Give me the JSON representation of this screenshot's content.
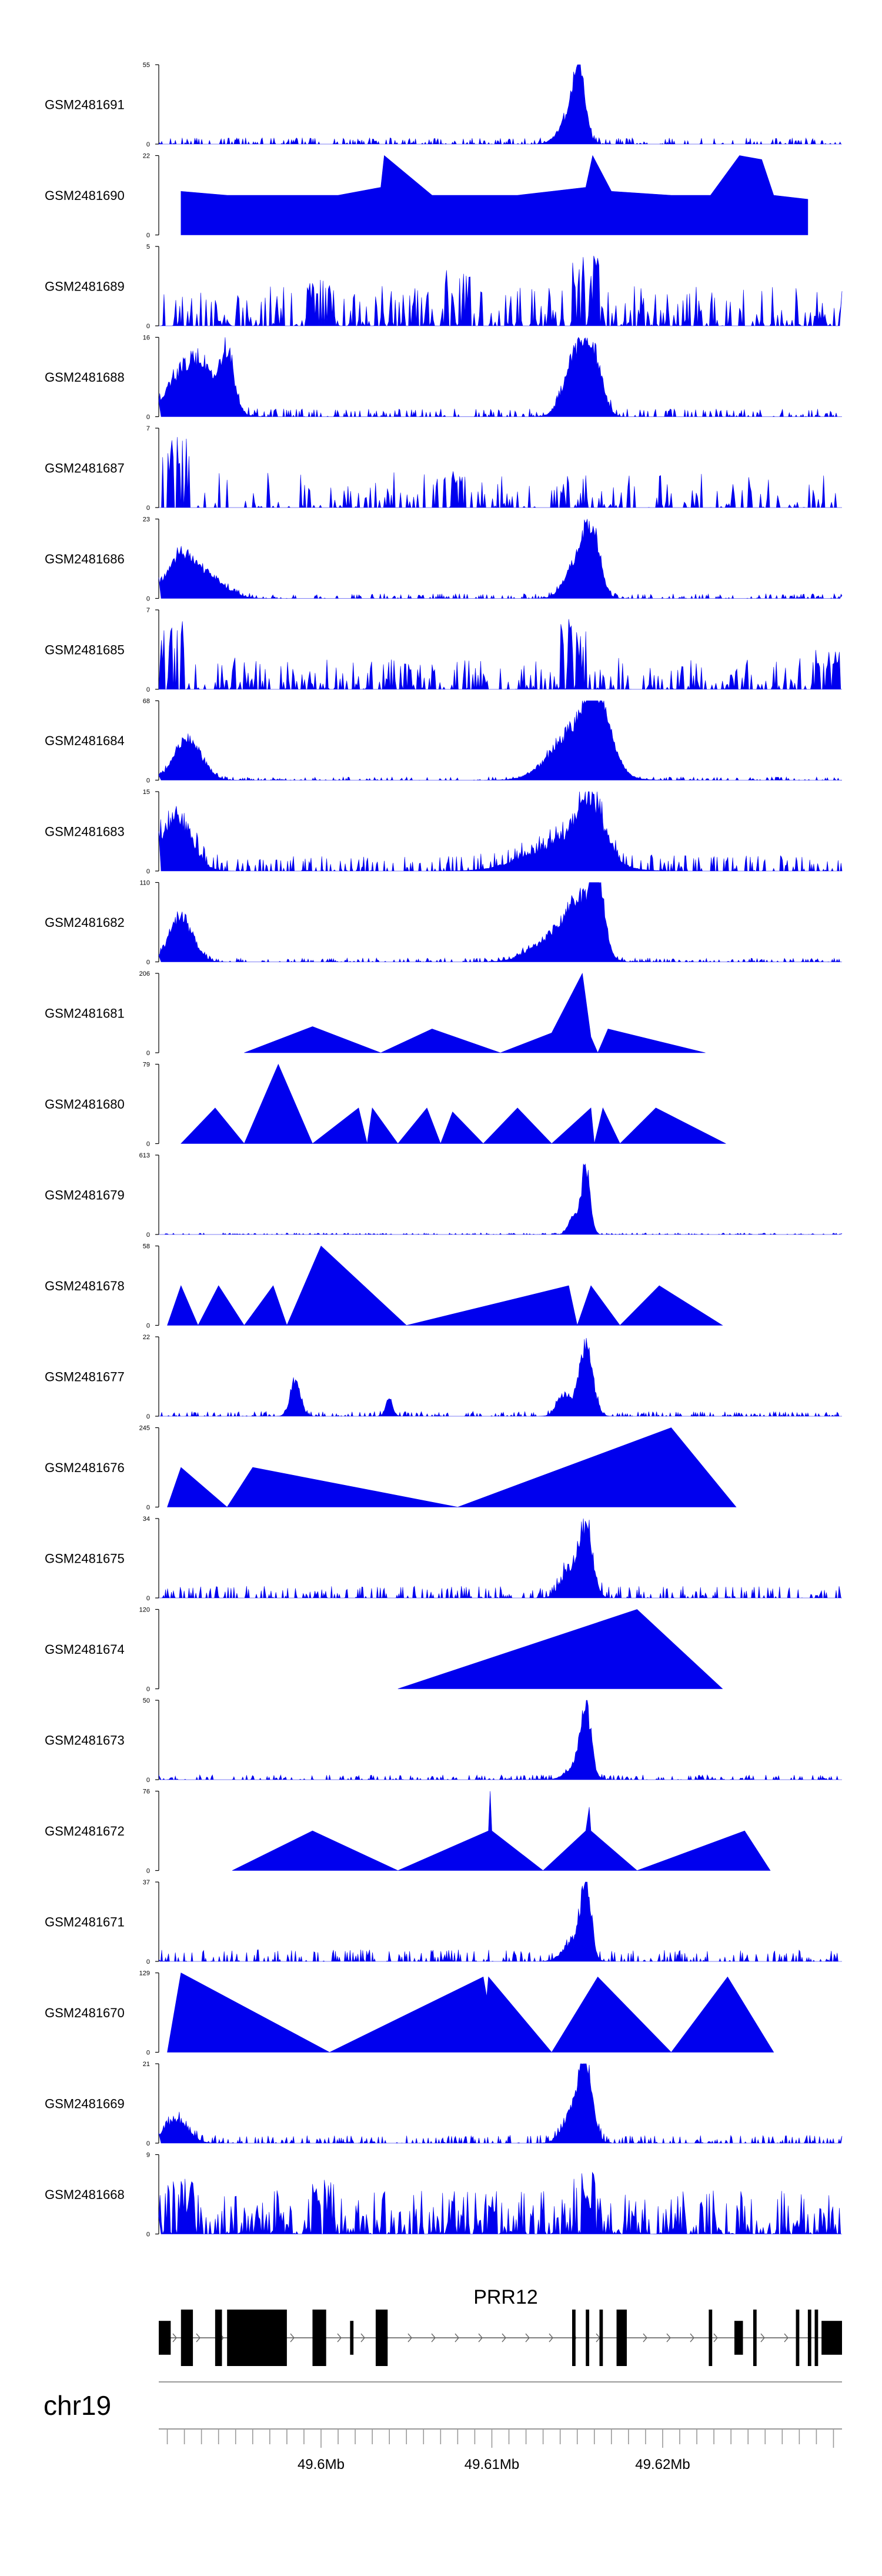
{
  "chart_data": {
    "type": "area",
    "chromosome": "chr19",
    "gene": "PRR12",
    "fill_color": "#0000ee",
    "x_range_mb": [
      49.5905,
      49.6305
    ],
    "axis_ticks": [
      {
        "pos": 49.6,
        "label": "49.6Mb"
      },
      {
        "pos": 49.61,
        "label": "49.61Mb"
      },
      {
        "pos": 49.62,
        "label": "49.62Mb"
      }
    ],
    "tracks": [
      {
        "name": "GSM2481691",
        "ymax": "55",
        "ymin": "0",
        "style": "noisy",
        "peaks": [
          [
            49.6151,
            1.0,
            0.00035
          ],
          [
            49.6145,
            0.35,
            0.0006
          ]
        ],
        "noise": 0.08
      },
      {
        "name": "GSM2481690",
        "ymax": "22",
        "ymin": "0",
        "style": "tri",
        "peaks": [
          [
            49.5918,
            0.55
          ],
          [
            49.5945,
            0.5
          ],
          [
            49.5975,
            0.5
          ],
          [
            49.601,
            0.5
          ],
          [
            49.6035,
            0.6
          ],
          [
            49.6037,
            1.0
          ],
          [
            49.6065,
            0.5
          ],
          [
            49.609,
            0.5
          ],
          [
            49.6115,
            0.5
          ],
          [
            49.6135,
            0.55
          ],
          [
            49.6155,
            0.6
          ],
          [
            49.6159,
            1.0
          ],
          [
            49.617,
            0.55
          ],
          [
            49.6205,
            0.5
          ],
          [
            49.6228,
            0.5
          ],
          [
            49.6245,
            1.0
          ],
          [
            49.6258,
            0.95
          ],
          [
            49.6265,
            0.5
          ],
          [
            49.6285,
            0.45
          ]
        ]
      },
      {
        "name": "GSM2481689",
        "ymax": "5",
        "ymin": "0",
        "style": "spiky",
        "density": 0.55,
        "height": 0.5,
        "boost": [
          [
            49.6,
            0.6
          ],
          [
            49.6155,
            0.9
          ],
          [
            49.608,
            0.7
          ]
        ]
      },
      {
        "name": "GSM2481688",
        "ymax": "16",
        "ymin": "0",
        "style": "noisy",
        "peaks": [
          [
            49.5925,
            0.85,
            0.0012
          ],
          [
            49.5945,
            0.75,
            0.0004
          ],
          [
            49.615,
            0.95,
            0.0007
          ],
          [
            49.616,
            0.6,
            0.0005
          ]
        ],
        "noise": 0.1
      },
      {
        "name": "GSM2481687",
        "ymax": "7",
        "ymin": "0",
        "style": "spiky",
        "density": 0.3,
        "height": 0.45,
        "boost": [
          [
            49.5915,
            0.9
          ],
          [
            49.6075,
            0.5
          ]
        ]
      },
      {
        "name": "GSM2481686",
        "ymax": "23",
        "ymin": "0",
        "style": "noisy",
        "peaks": [
          [
            49.5918,
            0.6,
            0.0009
          ],
          [
            49.5935,
            0.25,
            0.001
          ],
          [
            49.6158,
            1.0,
            0.0005
          ],
          [
            49.6148,
            0.45,
            0.0006
          ]
        ],
        "noise": 0.06
      },
      {
        "name": "GSM2481685",
        "ymax": "7",
        "ymin": "0",
        "style": "spiky",
        "density": 0.45,
        "height": 0.4,
        "boost": [
          [
            49.6148,
            0.9
          ],
          [
            49.5912,
            0.9
          ],
          [
            49.6296,
            0.5
          ]
        ]
      },
      {
        "name": "GSM2481684",
        "ymax": "68",
        "ymin": "0",
        "style": "noisy",
        "peaks": [
          [
            49.5922,
            0.6,
            0.0008
          ],
          [
            49.615,
            0.75,
            0.0014
          ],
          [
            49.6162,
            0.85,
            0.0007
          ]
        ],
        "noise": 0.04
      },
      {
        "name": "GSM2481683",
        "ymax": "15",
        "ymin": "0",
        "style": "noisy",
        "peaks": [
          [
            49.5915,
            0.8,
            0.0009
          ],
          [
            49.614,
            0.4,
            0.002
          ],
          [
            49.6158,
            0.8,
            0.0008
          ]
        ],
        "noise": 0.2
      },
      {
        "name": "GSM2481682",
        "ymax": "110",
        "ymin": "0",
        "style": "noisy",
        "peaks": [
          [
            49.5918,
            0.65,
            0.0007
          ],
          [
            49.6135,
            0.35,
            0.0012
          ],
          [
            49.6152,
            0.8,
            0.0008
          ],
          [
            49.6162,
            0.95,
            0.0004
          ]
        ],
        "noise": 0.05
      },
      {
        "name": "GSM2481681",
        "ymax": "206",
        "ymin": "0",
        "style": "tri",
        "peaks": [
          [
            49.5955,
            0.0
          ],
          [
            49.5995,
            0.33
          ],
          [
            49.6035,
            0.0
          ],
          [
            49.6065,
            0.3
          ],
          [
            49.6105,
            0.0
          ],
          [
            49.6135,
            0.25
          ],
          [
            49.6153,
            1.0
          ],
          [
            49.6158,
            0.2
          ],
          [
            49.6162,
            0.0
          ],
          [
            49.6168,
            0.3
          ],
          [
            49.6225,
            0.0
          ]
        ]
      },
      {
        "name": "GSM2481680",
        "ymax": "79",
        "ymin": "0",
        "style": "tri",
        "peaks": [
          [
            49.5918,
            0.0
          ],
          [
            49.5938,
            0.45
          ],
          [
            49.5955,
            0.0
          ],
          [
            49.5975,
            1.0
          ],
          [
            49.5995,
            0.0
          ],
          [
            49.6022,
            0.45
          ],
          [
            49.6027,
            0.0
          ],
          [
            49.603,
            0.45
          ],
          [
            49.6045,
            0.0
          ],
          [
            49.6062,
            0.45
          ],
          [
            49.607,
            0.0
          ],
          [
            49.6077,
            0.4
          ],
          [
            49.6095,
            0.0
          ],
          [
            49.6115,
            0.45
          ],
          [
            49.6135,
            0.0
          ],
          [
            49.6158,
            0.45
          ],
          [
            49.616,
            0.0
          ],
          [
            49.6165,
            0.45
          ],
          [
            49.6175,
            0.0
          ],
          [
            49.6196,
            0.45
          ],
          [
            49.6237,
            0.0
          ]
        ]
      },
      {
        "name": "GSM2481679",
        "ymax": "613",
        "ymin": "0",
        "style": "noisy",
        "peaks": [
          [
            49.6155,
            1.0,
            0.00025
          ],
          [
            49.6148,
            0.25,
            0.0003
          ]
        ],
        "noise": 0.02
      },
      {
        "name": "GSM2481678",
        "ymax": "58",
        "ymin": "0",
        "style": "tri",
        "peaks": [
          [
            49.591,
            0.0
          ],
          [
            49.5918,
            0.5
          ],
          [
            49.5928,
            0.0
          ],
          [
            49.594,
            0.5
          ],
          [
            49.5955,
            0.0
          ],
          [
            49.5972,
            0.5
          ],
          [
            49.598,
            0.0
          ],
          [
            49.6,
            1.0
          ],
          [
            49.605,
            0.0
          ],
          [
            49.6145,
            0.5
          ],
          [
            49.615,
            0.0
          ],
          [
            49.6158,
            0.5
          ],
          [
            49.6175,
            0.0
          ],
          [
            49.6198,
            0.5
          ],
          [
            49.6235,
            0.0
          ]
        ]
      },
      {
        "name": "GSM2481677",
        "ymax": "22",
        "ymin": "0",
        "style": "noisy",
        "peaks": [
          [
            49.5985,
            0.5,
            0.0003
          ],
          [
            49.604,
            0.25,
            0.0002
          ],
          [
            49.6155,
            1.0,
            0.0004
          ],
          [
            49.6142,
            0.3,
            0.0004
          ]
        ],
        "noise": 0.06
      },
      {
        "name": "GSM2481676",
        "ymax": "245",
        "ymin": "0",
        "style": "tri",
        "peaks": [
          [
            49.591,
            0.0
          ],
          [
            49.5918,
            0.5
          ],
          [
            49.5945,
            0.0
          ],
          [
            49.596,
            0.5
          ],
          [
            49.608,
            0.0
          ],
          [
            49.6205,
            1.0
          ],
          [
            49.6243,
            0.0
          ]
        ]
      },
      {
        "name": "GSM2481675",
        "ymax": "34",
        "ymin": "0",
        "style": "noisy",
        "peaks": [
          [
            49.6155,
            1.0,
            0.0004
          ],
          [
            49.6145,
            0.4,
            0.0005
          ]
        ],
        "noise": 0.15
      },
      {
        "name": "GSM2481674",
        "ymax": "120",
        "ymin": "0",
        "style": "tri",
        "peaks": [
          [
            49.6045,
            0.0
          ],
          [
            49.6185,
            1.0
          ],
          [
            49.6235,
            0.0
          ]
        ]
      },
      {
        "name": "GSM2481673",
        "ymax": "50",
        "ymin": "0",
        "style": "noisy",
        "peaks": [
          [
            49.6155,
            1.0,
            0.0003
          ],
          [
            49.615,
            0.2,
            0.0006
          ]
        ],
        "noise": 0.06
      },
      {
        "name": "GSM2481672",
        "ymax": "76",
        "ymin": "0",
        "style": "tri",
        "peaks": [
          [
            49.5948,
            0.0
          ],
          [
            49.5995,
            0.5
          ],
          [
            49.6045,
            0.0
          ],
          [
            49.6098,
            0.5
          ],
          [
            49.6099,
            1.0
          ],
          [
            49.61,
            0.5
          ],
          [
            49.613,
            0.0
          ],
          [
            49.6155,
            0.5
          ],
          [
            49.6157,
            0.8
          ],
          [
            49.6158,
            0.5
          ],
          [
            49.6185,
            0.0
          ],
          [
            49.6248,
            0.5
          ],
          [
            49.6263,
            0.0
          ]
        ]
      },
      {
        "name": "GSM2481671",
        "ymax": "37",
        "ymin": "0",
        "style": "noisy",
        "peaks": [
          [
            49.6155,
            1.0,
            0.0003
          ],
          [
            49.6148,
            0.3,
            0.0006
          ]
        ],
        "noise": 0.15
      },
      {
        "name": "GSM2481670",
        "ymax": "129",
        "ymin": "0",
        "style": "tri",
        "peaks": [
          [
            49.591,
            0.0
          ],
          [
            49.5918,
            1.0
          ],
          [
            49.6005,
            0.0
          ],
          [
            49.6095,
            0.95
          ],
          [
            49.6097,
            0.7
          ],
          [
            49.6098,
            0.95
          ],
          [
            49.6135,
            0.0
          ],
          [
            49.6162,
            0.95
          ],
          [
            49.6205,
            0.0
          ],
          [
            49.6238,
            0.95
          ],
          [
            49.6265,
            0.0
          ]
        ]
      },
      {
        "name": "GSM2481669",
        "ymax": "21",
        "ymin": "0",
        "style": "noisy",
        "peaks": [
          [
            49.6155,
            1.0,
            0.0004
          ],
          [
            49.6148,
            0.45,
            0.0006
          ],
          [
            49.5915,
            0.35,
            0.0007
          ]
        ],
        "noise": 0.1
      },
      {
        "name": "GSM2481668",
        "ymax": "9",
        "ymin": "0",
        "style": "spiky",
        "density": 0.7,
        "height": 0.55,
        "boost": [
          [
            49.5918,
            0.8
          ],
          [
            49.6,
            0.7
          ],
          [
            49.6155,
            0.8
          ]
        ]
      }
    ],
    "gene_model": {
      "start": 49.5905,
      "end": 49.6305,
      "exons": [
        [
          49.5905,
          49.5912,
          0.6
        ],
        [
          49.5918,
          49.5925,
          1.0
        ],
        [
          49.5938,
          49.5942,
          1.0
        ],
        [
          49.5945,
          49.598,
          1.0
        ],
        [
          49.5995,
          49.6003,
          1.0
        ],
        [
          49.6017,
          49.6019,
          0.6
        ],
        [
          49.6032,
          49.6039,
          1.0
        ],
        [
          49.6147,
          49.6149,
          1.0
        ],
        [
          49.6155,
          49.6157,
          1.0
        ],
        [
          49.6163,
          49.6165,
          1.0
        ],
        [
          49.6173,
          49.6179,
          1.0
        ],
        [
          49.6227,
          49.6229,
          1.0
        ],
        [
          49.6242,
          49.6247,
          0.6
        ],
        [
          49.6253,
          49.6255,
          1.0
        ],
        [
          49.6278,
          49.628,
          1.0
        ],
        [
          49.6285,
          49.6287,
          1.0
        ],
        [
          49.6289,
          49.6291,
          1.0
        ],
        [
          49.6293,
          49.6305,
          0.6
        ]
      ]
    }
  }
}
